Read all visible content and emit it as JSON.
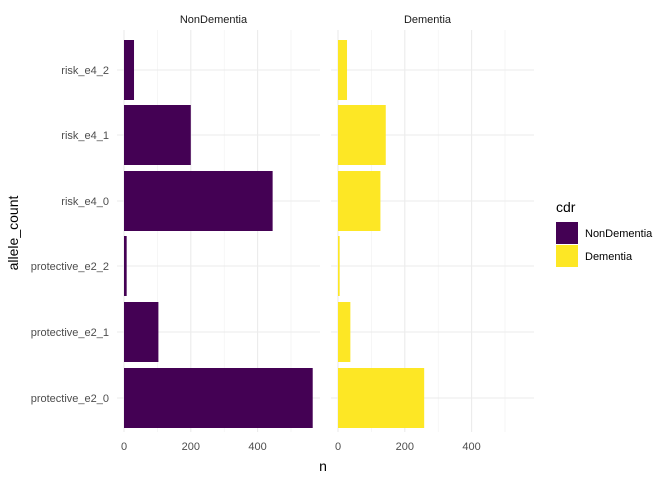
{
  "chart_data": {
    "type": "bar",
    "orientation": "horizontal",
    "facet_by": "cdr",
    "xlabel": "n",
    "ylabel": "allele_count",
    "xlim": [
      0,
      590
    ],
    "x_ticks": [
      0,
      200,
      400
    ],
    "grid": true,
    "legend_position": "right",
    "categories": [
      "risk_e4_2",
      "risk_e4_1",
      "risk_e4_0",
      "protective_e2_2",
      "protective_e2_1",
      "protective_e2_0"
    ],
    "series": [
      {
        "name": "NonDementia",
        "color": "#440154",
        "values": [
          30,
          200,
          445,
          8,
          103,
          565
        ]
      },
      {
        "name": "Dementia",
        "color": "#FDE725",
        "values": [
          27,
          143,
          127,
          5,
          37,
          258
        ]
      }
    ],
    "legend": {
      "title": "cdr",
      "entries": [
        "NonDementia",
        "Dementia"
      ]
    }
  }
}
